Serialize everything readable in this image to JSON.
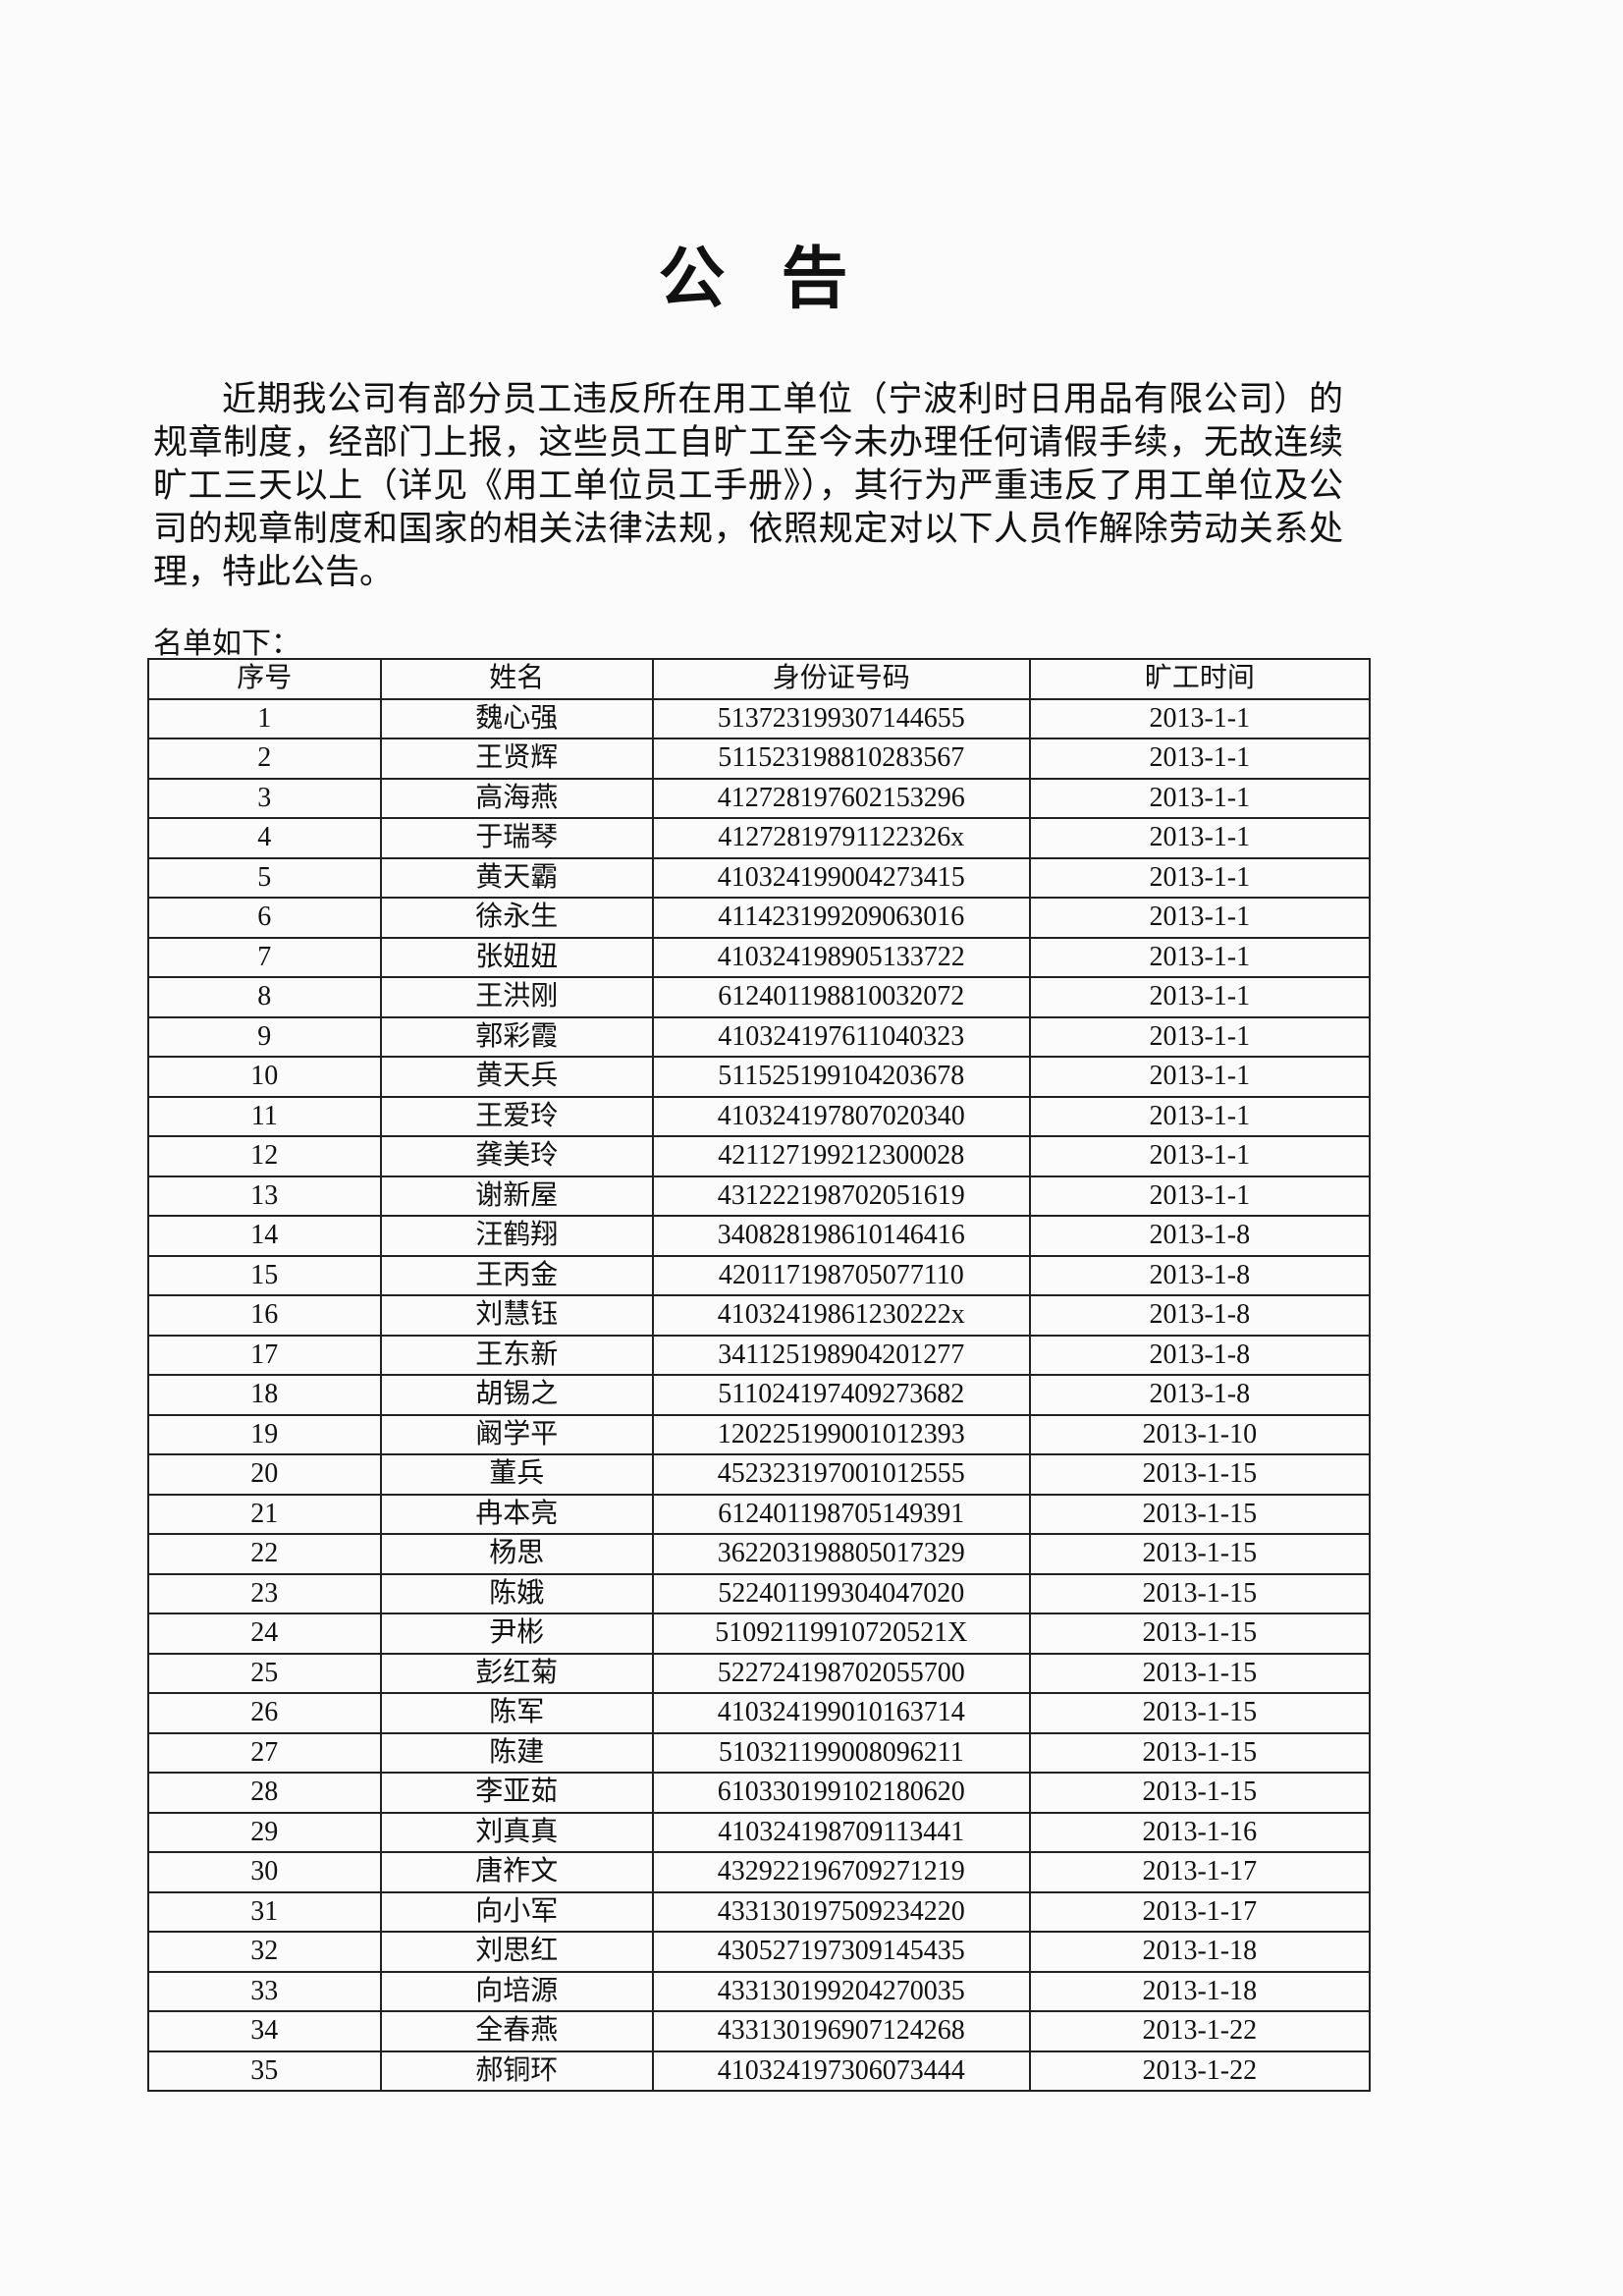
{
  "header": {
    "title": "公 告"
  },
  "body": {
    "paragraph": "近期我公司有部分员工违反所在用工单位（宁波利时日用品有限公司）的规章制度，经部门上报，这些员工自旷工至今未办理任何请假手续，无故连续旷工三天以上（详见《用工单位员工手册》），其行为严重违反了用工单位及公司的规章制度和国家的相关法律法规，依照规定对以下人员作解除劳动关系处理，特此公告。",
    "list_label": "名单如下："
  },
  "table": {
    "columns": [
      "序号",
      "姓名",
      "身份证号码",
      "旷工时间"
    ],
    "rows": [
      [
        "1",
        "魏心强",
        "513723199307144655",
        "2013-1-1"
      ],
      [
        "2",
        "王贤辉",
        "511523198810283567",
        "2013-1-1"
      ],
      [
        "3",
        "高海燕",
        "412728197602153296",
        "2013-1-1"
      ],
      [
        "4",
        "于瑞琴",
        "41272819791122326x",
        "2013-1-1"
      ],
      [
        "5",
        "黄天霸",
        "410324199004273415",
        "2013-1-1"
      ],
      [
        "6",
        "徐永生",
        "411423199209063016",
        "2013-1-1"
      ],
      [
        "7",
        "张妞妞",
        "410324198905133722",
        "2013-1-1"
      ],
      [
        "8",
        "王洪刚",
        "612401198810032072",
        "2013-1-1"
      ],
      [
        "9",
        "郭彩霞",
        "410324197611040323",
        "2013-1-1"
      ],
      [
        "10",
        "黄天兵",
        "511525199104203678",
        "2013-1-1"
      ],
      [
        "11",
        "王爱玲",
        "410324197807020340",
        "2013-1-1"
      ],
      [
        "12",
        "龚美玲",
        "421127199212300028",
        "2013-1-1"
      ],
      [
        "13",
        "谢新屋",
        "431222198702051619",
        "2013-1-1"
      ],
      [
        "14",
        "汪鹤翔",
        "340828198610146416",
        "2013-1-8"
      ],
      [
        "15",
        "王丙金",
        "420117198705077110",
        "2013-1-8"
      ],
      [
        "16",
        "刘慧钰",
        "41032419861230222x",
        "2013-1-8"
      ],
      [
        "17",
        "王东新",
        "341125198904201277",
        "2013-1-8"
      ],
      [
        "18",
        "胡锡之",
        "511024197409273682",
        "2013-1-8"
      ],
      [
        "19",
        "阚学平",
        "120225199001012393",
        "2013-1-10"
      ],
      [
        "20",
        "董兵",
        "452323197001012555",
        "2013-1-15"
      ],
      [
        "21",
        "冉本亮",
        "612401198705149391",
        "2013-1-15"
      ],
      [
        "22",
        "杨思",
        "362203198805017329",
        "2013-1-15"
      ],
      [
        "23",
        "陈娥",
        "522401199304047020",
        "2013-1-15"
      ],
      [
        "24",
        "尹彬",
        "51092119910720521X",
        "2013-1-15"
      ],
      [
        "25",
        "彭红菊",
        "522724198702055700",
        "2013-1-15"
      ],
      [
        "26",
        "陈军",
        "410324199010163714",
        "2013-1-15"
      ],
      [
        "27",
        "陈建",
        "510321199008096211",
        "2013-1-15"
      ],
      [
        "28",
        "李亚茹",
        "610330199102180620",
        "2013-1-15"
      ],
      [
        "29",
        "刘真真",
        "410324198709113441",
        "2013-1-16"
      ],
      [
        "30",
        "唐祚文",
        "432922196709271219",
        "2013-1-17"
      ],
      [
        "31",
        "向小军",
        "433130197509234220",
        "2013-1-17"
      ],
      [
        "32",
        "刘思红",
        "430527197309145435",
        "2013-1-18"
      ],
      [
        "33",
        "向培源",
        "433130199204270035",
        "2013-1-18"
      ],
      [
        "34",
        "全春燕",
        "433130196907124268",
        "2013-1-22"
      ],
      [
        "35",
        "郝铜环",
        "410324197306073444",
        "2013-1-22"
      ]
    ]
  }
}
